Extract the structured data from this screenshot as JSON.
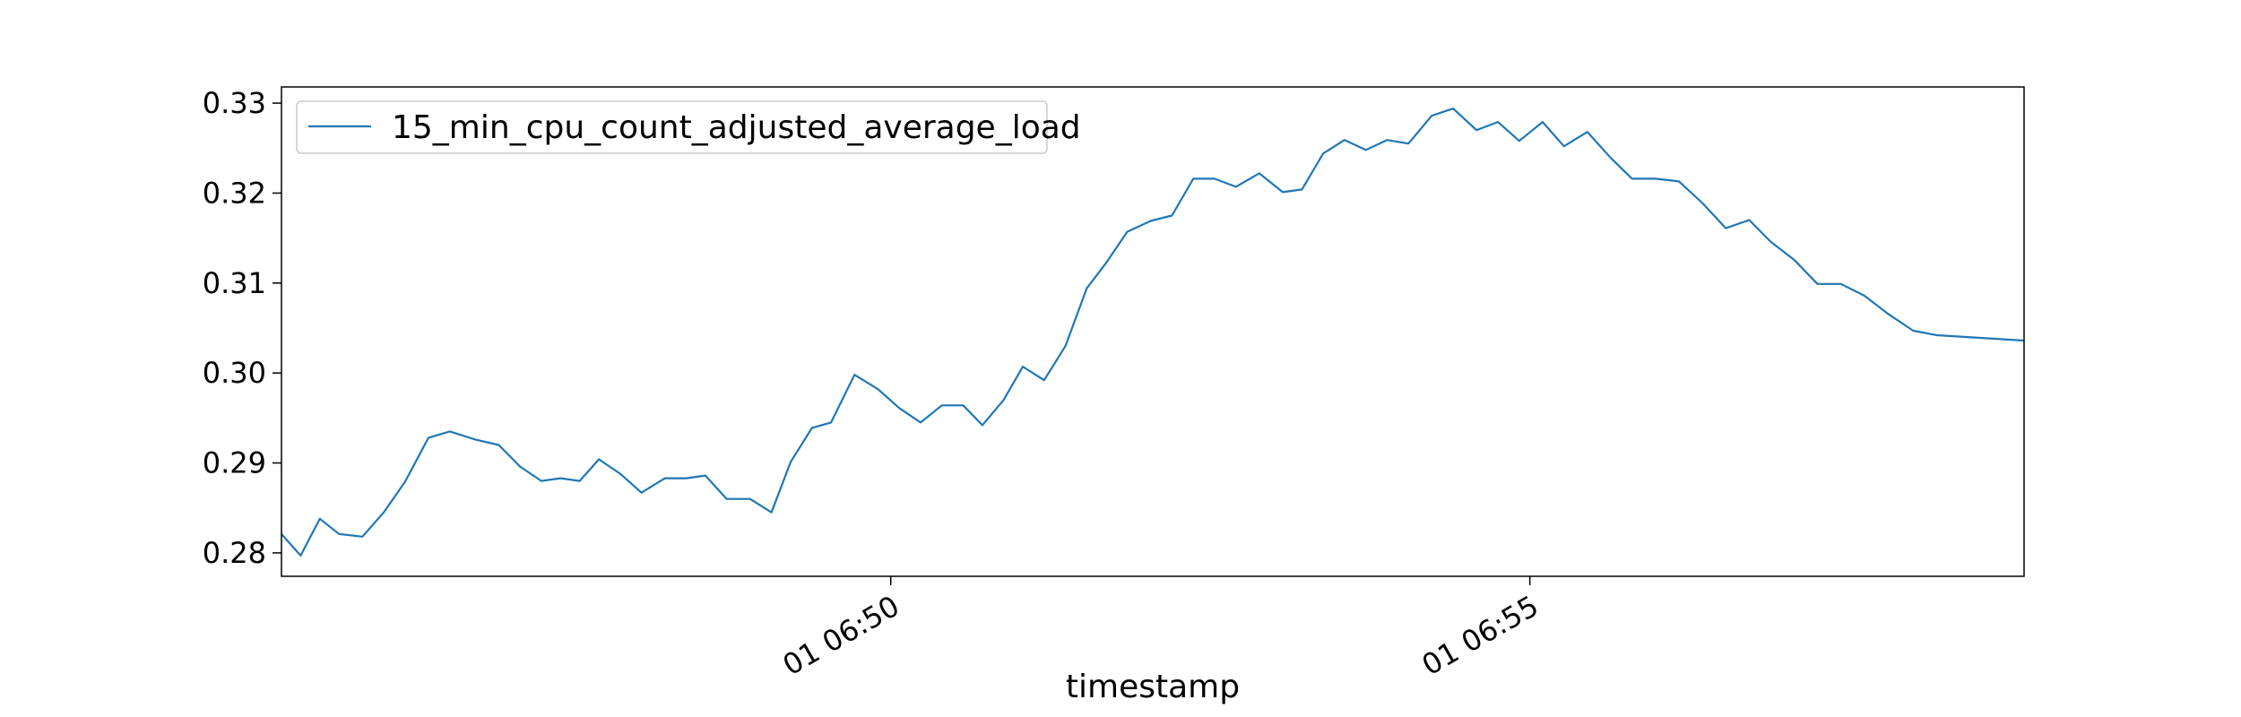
{
  "chart_data": {
    "type": "line",
    "title": "",
    "xlabel": "timestamp",
    "ylabel": "",
    "x_range": [
      "01 06:45:14",
      "01 06:58:52"
    ],
    "ylim": [
      0.2774,
      0.3318
    ],
    "y_ticks": [
      0.28,
      0.29,
      0.3,
      0.31,
      0.32,
      0.33
    ],
    "y_tick_labels": [
      "0.28",
      "0.29",
      "0.30",
      "0.31",
      "0.32",
      "0.33"
    ],
    "x_ticks": [
      "01 06:50:00",
      "01 06:55:00"
    ],
    "x_tick_labels": [
      "01 06:50",
      "01 06:55"
    ],
    "grid": false,
    "legend": {
      "position": "upper left"
    },
    "colors": {
      "series": "#1f77b4",
      "axes": "#000000",
      "legend_border": "#cccccc"
    },
    "series": [
      {
        "name": "15_min_cpu_count_adjusted_average_load",
        "points": [
          [
            "01 06:45:14",
            0.2821
          ],
          [
            "01 06:45:23",
            0.2797
          ],
          [
            "01 06:45:32",
            0.2838
          ],
          [
            "01 06:45:41",
            0.2821
          ],
          [
            "01 06:45:52",
            0.2818
          ],
          [
            "01 06:46:02",
            0.2845
          ],
          [
            "01 06:46:12",
            0.2879
          ],
          [
            "01 06:46:23",
            0.2928
          ],
          [
            "01 06:46:33",
            0.2935
          ],
          [
            "01 06:46:45",
            0.2926
          ],
          [
            "01 06:46:56",
            0.292
          ],
          [
            "01 06:47:06",
            0.2896
          ],
          [
            "01 06:47:16",
            0.288
          ],
          [
            "01 06:47:25",
            0.2883
          ],
          [
            "01 06:47:34",
            0.288
          ],
          [
            "01 06:47:43",
            0.2904
          ],
          [
            "01 06:47:53",
            0.2888
          ],
          [
            "01 06:48:03",
            0.2867
          ],
          [
            "01 06:48:14",
            0.2883
          ],
          [
            "01 06:48:24",
            0.2883
          ],
          [
            "01 06:48:33",
            0.2886
          ],
          [
            "01 06:48:43",
            0.286
          ],
          [
            "01 06:48:54",
            0.286
          ],
          [
            "01 06:49:04",
            0.2845
          ],
          [
            "01 06:49:13",
            0.2901
          ],
          [
            "01 06:49:23",
            0.2939
          ],
          [
            "01 06:49:32",
            0.2945
          ],
          [
            "01 06:49:43",
            0.2998
          ],
          [
            "01 06:49:54",
            0.2982
          ],
          [
            "01 06:50:04",
            0.2961
          ],
          [
            "01 06:50:14",
            0.2945
          ],
          [
            "01 06:50:24",
            0.2964
          ],
          [
            "01 06:50:34",
            0.2964
          ],
          [
            "01 06:50:43",
            0.2942
          ],
          [
            "01 06:50:53",
            0.297
          ],
          [
            "01 06:51:02",
            0.3007
          ],
          [
            "01 06:51:12",
            0.2992
          ],
          [
            "01 06:51:22",
            0.303
          ],
          [
            "01 06:51:32",
            0.3094
          ],
          [
            "01 06:51:41",
            0.3122
          ],
          [
            "01 06:51:51",
            0.3157
          ],
          [
            "01 06:52:02",
            0.3169
          ],
          [
            "01 06:52:12",
            0.3175
          ],
          [
            "01 06:52:22",
            0.3216
          ],
          [
            "01 06:52:32",
            0.3216
          ],
          [
            "01 06:52:42",
            0.3207
          ],
          [
            "01 06:52:53",
            0.3222
          ],
          [
            "01 06:53:04",
            0.3201
          ],
          [
            "01 06:53:13",
            0.3204
          ],
          [
            "01 06:53:23",
            0.3244
          ],
          [
            "01 06:53:33",
            0.3259
          ],
          [
            "01 06:53:43",
            0.3248
          ],
          [
            "01 06:53:53",
            0.3259
          ],
          [
            "01 06:54:03",
            0.3255
          ],
          [
            "01 06:54:14",
            0.3286
          ],
          [
            "01 06:54:24",
            0.3294
          ],
          [
            "01 06:54:35",
            0.327
          ],
          [
            "01 06:54:45",
            0.3279
          ],
          [
            "01 06:54:55",
            0.3258
          ],
          [
            "01 06:55:06",
            0.3279
          ],
          [
            "01 06:55:16",
            0.3252
          ],
          [
            "01 06:55:27",
            0.3268
          ],
          [
            "01 06:55:38",
            0.3239
          ],
          [
            "01 06:55:48",
            0.3216
          ],
          [
            "01 06:55:59",
            0.3216
          ],
          [
            "01 06:56:10",
            0.3213
          ],
          [
            "01 06:56:21",
            0.3189
          ],
          [
            "01 06:56:32",
            0.3161
          ],
          [
            "01 06:56:43",
            0.317
          ],
          [
            "01 06:56:53",
            0.3146
          ],
          [
            "01 06:57:04",
            0.3126
          ],
          [
            "01 06:57:15",
            0.3099
          ],
          [
            "01 06:57:26",
            0.3099
          ],
          [
            "01 06:57:37",
            0.3086
          ],
          [
            "01 06:57:48",
            0.3066
          ],
          [
            "01 06:58:00",
            0.3047
          ],
          [
            "01 06:58:11",
            0.3042
          ],
          [
            "01 06:58:52",
            0.3036
          ]
        ]
      }
    ]
  }
}
